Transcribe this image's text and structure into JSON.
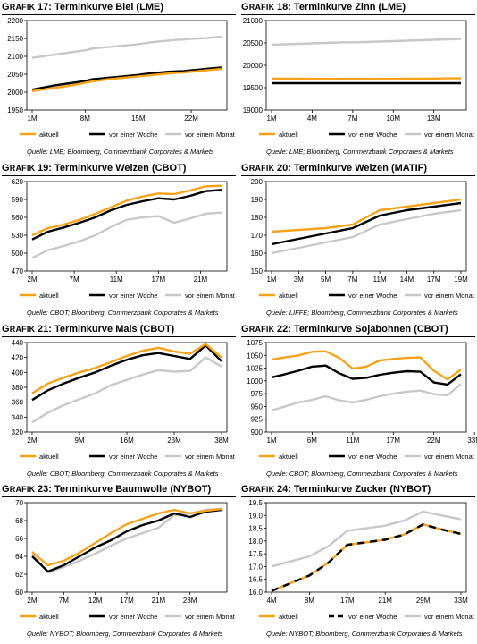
{
  "colors": {
    "aktuell": "#F7A21B",
    "woche": "#000000",
    "monat": "#C8C8C8"
  },
  "chart_data": [
    {
      "id": "g17",
      "grafik_word": "Grafik",
      "number": "17:",
      "name": "Terminkurve Blei (LME)",
      "source": "Quelle: LME; Bloomberg, Commerzbank Corporates & Markets",
      "type": "line",
      "x_ticks": [
        "1M",
        "8M",
        "15M",
        "22M"
      ],
      "x_tick_index": [
        0,
        7,
        14,
        21
      ],
      "ylim": [
        1950,
        2200
      ],
      "y_ticks": [
        1950,
        2000,
        2050,
        2100,
        2150,
        2200
      ],
      "series": [
        {
          "name": "aktuell",
          "values": [
            2003,
            2006,
            2009,
            2012,
            2015,
            2018,
            2022,
            2026,
            2030,
            2033,
            2036,
            2038,
            2040,
            2042,
            2044,
            2046,
            2048,
            2050,
            2052,
            2054,
            2055,
            2057,
            2059,
            2061,
            2063,
            2065
          ]
        },
        {
          "name": "vor einer Woche",
          "values": [
            2007,
            2011,
            2015,
            2019,
            2022,
            2025,
            2028,
            2031,
            2036,
            2038,
            2040,
            2042,
            2044,
            2046,
            2048,
            2051,
            2053,
            2055,
            2057,
            2058,
            2059,
            2061,
            2063,
            2065,
            2067,
            2069
          ]
        },
        {
          "name": "vor einem Monat",
          "values": [
            2096,
            2099,
            2102,
            2105,
            2108,
            2111,
            2114,
            2117,
            2122,
            2124,
            2126,
            2128,
            2130,
            2132,
            2134,
            2137,
            2140,
            2142,
            2144,
            2146,
            2147,
            2149,
            2150,
            2151,
            2153,
            2155
          ]
        }
      ]
    },
    {
      "id": "g18",
      "grafik_word": "Grafik",
      "number": "18:",
      "name": "Terminkurve Zinn (LME)",
      "source": "Quelle: LME; Bloomberg, Commerzbank Corporates & Markets",
      "type": "line",
      "x_ticks": [
        "1M",
        "4M",
        "7M",
        "10M",
        "13M"
      ],
      "x_tick_index": [
        0,
        3,
        6,
        9,
        12
      ],
      "ylim": [
        19000,
        21000
      ],
      "y_ticks": [
        19000,
        19500,
        20000,
        20500,
        21000
      ],
      "series": [
        {
          "name": "aktuell",
          "values": [
            19705,
            19700,
            19700,
            19698,
            19698,
            19697,
            19697,
            19697,
            19698,
            19698,
            19700,
            19702,
            19705,
            19708,
            19710
          ]
        },
        {
          "name": "vor einer Woche",
          "values": [
            19600,
            19600,
            19600,
            19600,
            19600,
            19600,
            19600,
            19600,
            19600,
            19600,
            19600,
            19600,
            19600,
            19600,
            19600
          ]
        },
        {
          "name": "vor einem Monat",
          "values": [
            20460,
            20470,
            20480,
            20490,
            20500,
            20510,
            20515,
            20520,
            20530,
            20540,
            20550,
            20560,
            20570,
            20580,
            20590
          ]
        }
      ]
    },
    {
      "id": "g19",
      "grafik_word": "Grafik",
      "number": "19:",
      "name": "Terminkurve Weizen (CBOT)",
      "source": "Quelle: CBOT; Bloomberg, Commerzbank Corporates & Markets",
      "type": "line",
      "x_ticks": [
        "2M",
        "7M",
        "11M",
        "17M",
        "21M"
      ],
      "x_tick_index": [
        0,
        1,
        2,
        3,
        4
      ],
      "x_points": [
        0,
        0.5,
        1,
        1.5,
        2,
        2.5,
        3,
        3.5,
        4,
        4.5,
        5,
        5.5,
        6
      ],
      "ylim": [
        470,
        620
      ],
      "y_ticks": [
        470,
        500,
        530,
        560,
        590,
        620
      ],
      "series": [
        {
          "name": "aktuell",
          "values": [
            530,
            542,
            548,
            556,
            566,
            577,
            588,
            595,
            600,
            599,
            605,
            612,
            613
          ]
        },
        {
          "name": "vor einer Woche",
          "values": [
            523,
            536,
            543,
            551,
            560,
            572,
            581,
            587,
            592,
            590,
            596,
            604,
            606
          ]
        },
        {
          "name": "vor einem Monat",
          "values": [
            492,
            505,
            512,
            520,
            530,
            544,
            556,
            560,
            562,
            551,
            558,
            566,
            568
          ]
        }
      ]
    },
    {
      "id": "g20",
      "grafik_word": "Grafik",
      "number": "20:",
      "name": "Terminkurve Weizen (MATIF)",
      "source": "Quelle: LIFFE; Bloomberg, Commerzbank Corporates & Markets",
      "type": "line",
      "x_ticks": [
        "1M",
        "3M",
        "5M",
        "7M",
        "11M",
        "14M",
        "17M",
        "19M"
      ],
      "x_tick_index": [
        0,
        1,
        2,
        3,
        4,
        5,
        6,
        7
      ],
      "ylim": [
        150,
        200
      ],
      "y_ticks": [
        150,
        160,
        170,
        180,
        190,
        200
      ],
      "series": [
        {
          "name": "aktuell",
          "values": [
            172,
            173,
            174,
            176,
            184,
            186,
            188,
            190
          ]
        },
        {
          "name": "vor einer Woche",
          "values": [
            165,
            168,
            171,
            174,
            181,
            184,
            186,
            188
          ]
        },
        {
          "name": "vor einem Monat",
          "values": [
            160,
            163,
            166,
            169,
            176,
            179,
            182,
            184
          ]
        }
      ]
    },
    {
      "id": "g21",
      "grafik_word": "Grafik",
      "number": "21:",
      "name": "Terminkurve Mais (CBOT)",
      "source": "Quelle: CBOT; Bloomberg, Commerzbank Corporates & Markets",
      "type": "line",
      "x_ticks": [
        "2M",
        "9M",
        "16M",
        "23M",
        "38M"
      ],
      "x_tick_index": [
        0,
        3,
        6,
        9,
        12
      ],
      "ylim": [
        320,
        440
      ],
      "y_ticks": [
        320,
        340,
        360,
        380,
        400,
        420,
        440
      ],
      "series": [
        {
          "name": "aktuell",
          "values": [
            372,
            385,
            393,
            400,
            406,
            414,
            422,
            429,
            433,
            428,
            425,
            438,
            420
          ]
        },
        {
          "name": "vor einer Woche",
          "values": [
            363,
            376,
            385,
            393,
            400,
            409,
            417,
            423,
            426,
            422,
            418,
            436,
            415
          ]
        },
        {
          "name": "vor einem Monat",
          "values": [
            333,
            346,
            356,
            364,
            372,
            383,
            390,
            397,
            403,
            401,
            402,
            420,
            408
          ]
        }
      ]
    },
    {
      "id": "g22",
      "grafik_word": "Grafik",
      "number": "22:",
      "name": "Terminkurve Sojabohnen (CBOT)",
      "source": "Quelle: CBOT; Bloomberg, Commerzbank Corporates & Markets",
      "type": "line",
      "x_ticks": [
        "1M",
        "6M",
        "11M",
        "17M",
        "22M",
        "33M"
      ],
      "x_tick_index": [
        0,
        3,
        6,
        9,
        12,
        15
      ],
      "ylim": [
        900,
        1075
      ],
      "y_ticks": [
        900,
        925,
        950,
        975,
        1000,
        1025,
        1050,
        1075
      ],
      "series": [
        {
          "name": "aktuell",
          "values": [
            1042,
            1046,
            1050,
            1057,
            1058,
            1045,
            1024,
            1028,
            1040,
            1043,
            1045,
            1046,
            1020,
            1003,
            1022
          ]
        },
        {
          "name": "vor einer Woche",
          "values": [
            1007,
            1013,
            1020,
            1028,
            1030,
            1015,
            1004,
            1006,
            1012,
            1016,
            1019,
            1018,
            997,
            993,
            1013
          ]
        },
        {
          "name": "vor einem Monat",
          "values": [
            942,
            950,
            958,
            963,
            970,
            962,
            958,
            963,
            970,
            975,
            979,
            981,
            974,
            972,
            994
          ]
        }
      ]
    },
    {
      "id": "g23",
      "grafik_word": "Grafik",
      "number": "23:",
      "name": "Terminkurve Baumwolle (NYBOT)",
      "source": "Quelle: NYBOT; Bloomberg, Commerzbank Corporates & Markets",
      "type": "line",
      "x_ticks": [
        "2M",
        "7M",
        "12M",
        "17M",
        "21M",
        "28M"
      ],
      "x_tick_index": [
        0,
        2,
        4,
        6,
        8,
        10
      ],
      "ylim": [
        60,
        70
      ],
      "y_ticks": [
        60,
        62,
        64,
        66,
        68,
        70
      ],
      "series": [
        {
          "name": "aktuell",
          "values": [
            64.5,
            63.0,
            63.5,
            64.4,
            65.5,
            66.6,
            67.6,
            68.2,
            68.8,
            69.2,
            68.8,
            69.1,
            69.3
          ]
        },
        {
          "name": "vor einer Woche",
          "values": [
            64.0,
            62.3,
            63.0,
            64.0,
            65.0,
            65.8,
            66.8,
            67.5,
            68.0,
            68.8,
            68.4,
            69.0,
            69.2
          ]
        },
        {
          "name": "vor einem Monat",
          "values": [
            64.3,
            62.2,
            62.8,
            63.5,
            64.3,
            65.2,
            66.0,
            66.6,
            67.2,
            68.6,
            68.8,
            69.2,
            69.3
          ]
        }
      ]
    },
    {
      "id": "g24",
      "grafik_word": "Grafik",
      "number": "24:",
      "name": "Terminkurve Zucker (NYBOT)",
      "source": "Quelle: NYBOT; Bloomberg, Commerzbank Corporates & Markets",
      "type": "line",
      "x_ticks": [
        "4M",
        "8M",
        "17M",
        "21M",
        "29M",
        "33M"
      ],
      "x_tick_index": [
        0,
        2,
        4,
        6,
        8,
        10
      ],
      "ylim": [
        16.0,
        19.5
      ],
      "y_ticks": [
        16.0,
        16.5,
        17.0,
        17.5,
        18.0,
        18.5,
        19.0,
        19.5
      ],
      "series": [
        {
          "name": "aktuell",
          "values": [
            16.05,
            16.35,
            16.65,
            17.15,
            17.85,
            17.95,
            18.05,
            18.25,
            18.65,
            18.45,
            18.28
          ]
        },
        {
          "name": "vor einer Woche",
          "values": [
            16.05,
            16.35,
            16.65,
            17.15,
            17.85,
            17.95,
            18.05,
            18.25,
            18.65,
            18.45,
            18.28
          ]
        },
        {
          "name": "vor einem Monat",
          "values": [
            17.0,
            17.2,
            17.4,
            17.8,
            18.4,
            18.5,
            18.6,
            18.8,
            19.15,
            19.0,
            18.85
          ]
        }
      ]
    }
  ]
}
